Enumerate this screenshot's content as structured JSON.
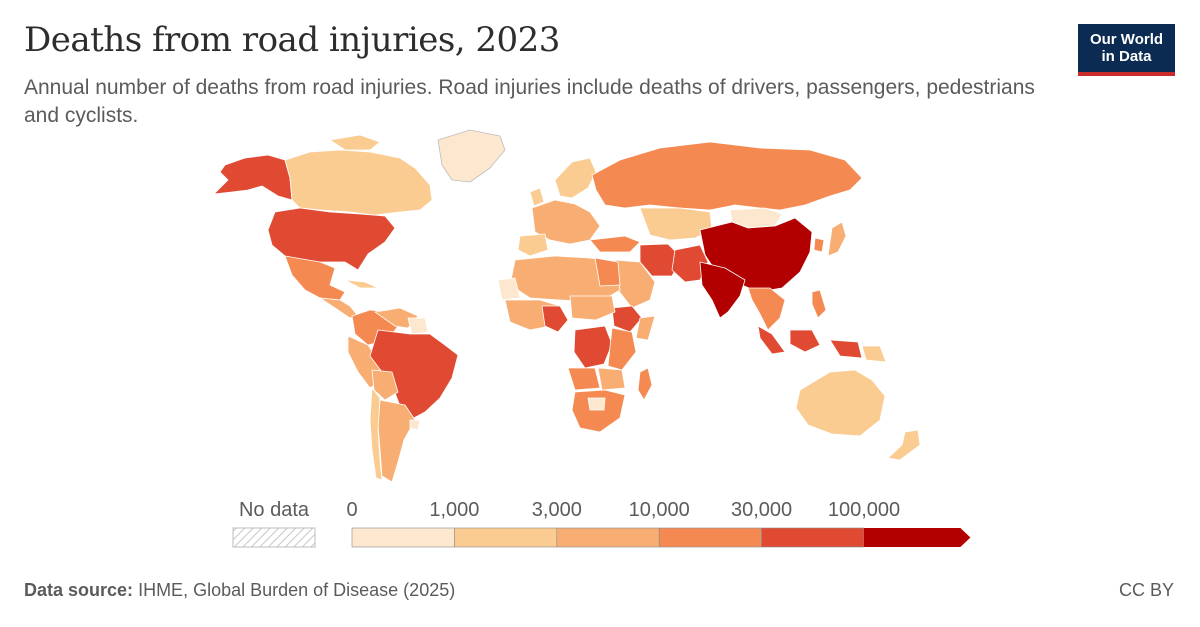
{
  "title": "Deaths from road injuries, 2023",
  "subtitle": "Annual number of deaths from road injuries. Road injuries include deaths of drivers, passengers, pedestrians and cyclists.",
  "logo": {
    "line1": "Our World",
    "line2": "in Data"
  },
  "legend": {
    "no_data_label": "No data",
    "ticks": [
      "0",
      "1,000",
      "3,000",
      "10,000",
      "30,000",
      "100,000"
    ],
    "colors": [
      "#fde8cf",
      "#fbcc92",
      "#f8ad72",
      "#f48a52",
      "#e04a33",
      "#b20000"
    ]
  },
  "footer": {
    "source_label": "Data source:",
    "source_text": "IHME, Global Burden of Disease (2025)",
    "license": "CC BY"
  }
}
